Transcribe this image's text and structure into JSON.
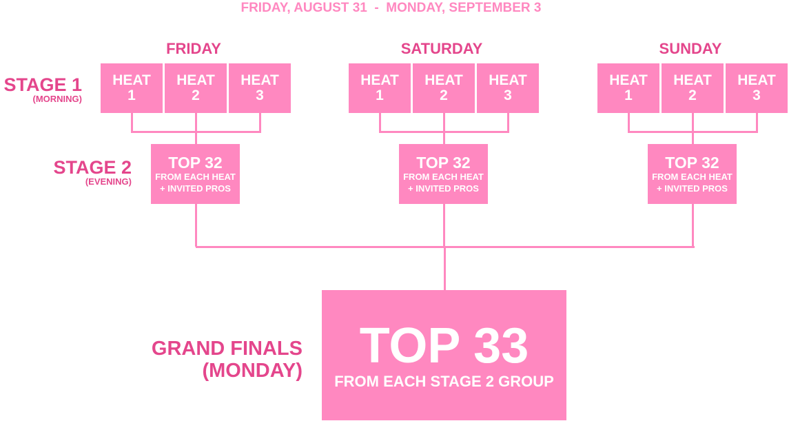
{
  "title": "FRIDAY, AUGUST 31  -  MONDAY, SEPTEMBER 3",
  "colors": {
    "box": "#ff88c0",
    "text": "#e4468c",
    "box_text": "#ffffff"
  },
  "stage_labels": {
    "stage1": {
      "title": "STAGE 1",
      "sub": "(MORNING)"
    },
    "stage2": {
      "title": "STAGE 2",
      "sub": "(EVENING)"
    },
    "grand": {
      "title": "GRAND FINALS",
      "sub": "(MONDAY)"
    }
  },
  "days": [
    {
      "name": "FRIDAY",
      "heats": [
        {
          "a": "HEAT",
          "b": "1"
        },
        {
          "a": "HEAT",
          "b": "2"
        },
        {
          "a": "HEAT",
          "b": "3"
        }
      ],
      "stage2": {
        "big": "TOP 32",
        "l1": "FROM EACH HEAT",
        "l2": "+ INVITED PROS"
      }
    },
    {
      "name": "SATURDAY",
      "heats": [
        {
          "a": "HEAT",
          "b": "1"
        },
        {
          "a": "HEAT",
          "b": "2"
        },
        {
          "a": "HEAT",
          "b": "3"
        }
      ],
      "stage2": {
        "big": "TOP 32",
        "l1": "FROM EACH HEAT",
        "l2": "+ INVITED PROS"
      }
    },
    {
      "name": "SUNDAY",
      "heats": [
        {
          "a": "HEAT",
          "b": "1"
        },
        {
          "a": "HEAT",
          "b": "2"
        },
        {
          "a": "HEAT",
          "b": "3"
        }
      ],
      "stage2": {
        "big": "TOP 32",
        "l1": "FROM EACH HEAT",
        "l2": "+ INVITED PROS"
      }
    }
  ],
  "grand_final": {
    "big": "TOP 33",
    "sub": "FROM EACH STAGE 2 GROUP"
  }
}
